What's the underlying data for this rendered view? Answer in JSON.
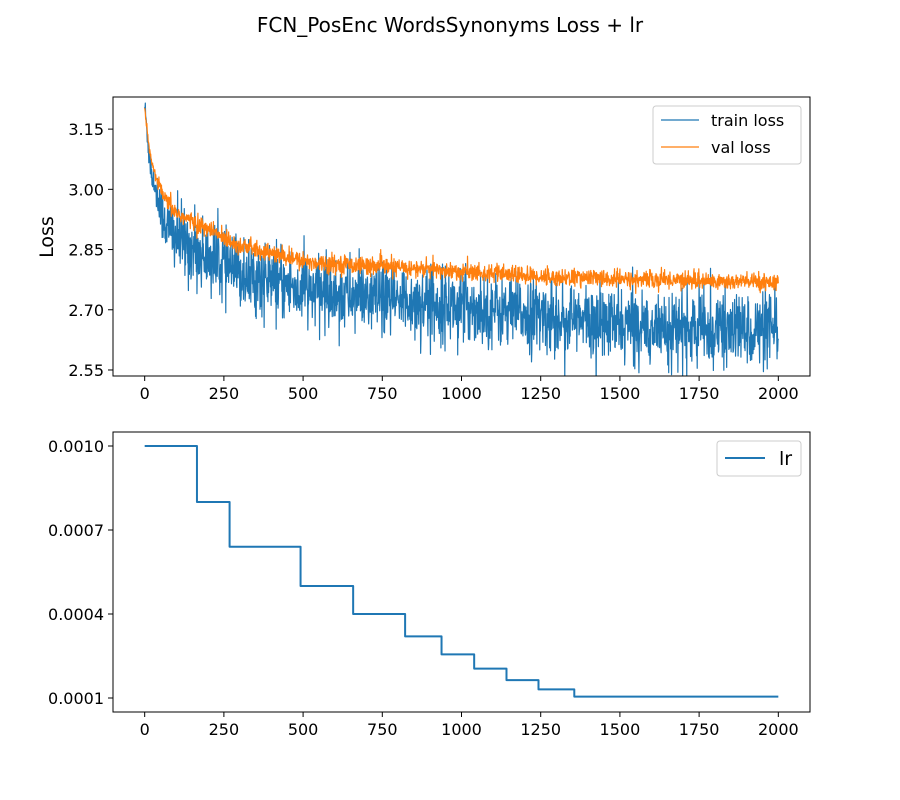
{
  "figure": {
    "suptitle": "FCN_PosEnc WordsSynonyms Loss + lr"
  },
  "chart_data": [
    {
      "type": "line",
      "title": "",
      "xlabel": "",
      "ylabel": "Loss",
      "xlim": [
        -100,
        2100
      ],
      "ylim": [
        2.535,
        3.23
      ],
      "xticks": [
        0,
        250,
        500,
        750,
        1000,
        1250,
        1500,
        1750,
        2000
      ],
      "yticks": [
        2.55,
        2.7,
        2.85,
        3.0,
        3.15
      ],
      "ytick_labels": [
        "2.55",
        "2.70",
        "2.85",
        "3.00",
        "3.15"
      ],
      "legend_position": "top-right",
      "series": [
        {
          "name": "train loss",
          "color": "#1f77b4",
          "x": [
            0,
            10,
            20,
            40,
            60,
            80,
            100,
            150,
            200,
            250,
            300,
            400,
            500,
            600,
            700,
            800,
            900,
            1000,
            1100,
            1200,
            1300,
            1400,
            1500,
            1600,
            1700,
            1800,
            1900,
            2000
          ],
          "y": [
            3.21,
            3.12,
            3.05,
            2.98,
            2.93,
            2.9,
            2.88,
            2.85,
            2.83,
            2.81,
            2.79,
            2.77,
            2.75,
            2.74,
            2.73,
            2.72,
            2.72,
            2.71,
            2.7,
            2.69,
            2.68,
            2.67,
            2.66,
            2.66,
            2.65,
            2.65,
            2.65,
            2.64
          ],
          "noise": 0.045
        },
        {
          "name": "val loss",
          "color": "#ff7f0e",
          "x": [
            0,
            10,
            20,
            40,
            60,
            80,
            100,
            150,
            200,
            250,
            300,
            400,
            500,
            600,
            700,
            800,
            900,
            1000,
            1100,
            1200,
            1300,
            1400,
            1500,
            1600,
            1700,
            1800,
            1900,
            2000
          ],
          "y": [
            3.2,
            3.13,
            3.07,
            3.02,
            2.98,
            2.96,
            2.94,
            2.92,
            2.9,
            2.88,
            2.86,
            2.84,
            2.82,
            2.815,
            2.81,
            2.805,
            2.8,
            2.795,
            2.79,
            2.785,
            2.78,
            2.78,
            2.775,
            2.775,
            2.775,
            2.77,
            2.77,
            2.77
          ],
          "noise": 0.011
        }
      ]
    },
    {
      "type": "line",
      "title": "",
      "xlabel": "",
      "ylabel": "",
      "xlim": [
        -100,
        2100
      ],
      "ylim": [
        5e-05,
        0.00105
      ],
      "xticks": [
        0,
        250,
        500,
        750,
        1000,
        1250,
        1500,
        1750,
        2000
      ],
      "yticks": [
        0.0001,
        0.0004,
        0.0007,
        0.001
      ],
      "ytick_labels": [
        "0.0001",
        "0.0004",
        "0.0007",
        "0.0010"
      ],
      "legend_position": "top-right",
      "series": [
        {
          "name": "lr",
          "color": "#1f77b4",
          "step": true,
          "x": [
            0,
            165,
            268,
            492,
            658,
            822,
            937,
            1040,
            1142,
            1243,
            1356,
            2000
          ],
          "y": [
            0.001,
            0.0008,
            0.00064,
            0.0005,
            0.0004,
            0.00032,
            0.000256,
            0.000205,
            0.000164,
            0.000131,
            0.000105,
            0.000105
          ]
        }
      ]
    }
  ]
}
